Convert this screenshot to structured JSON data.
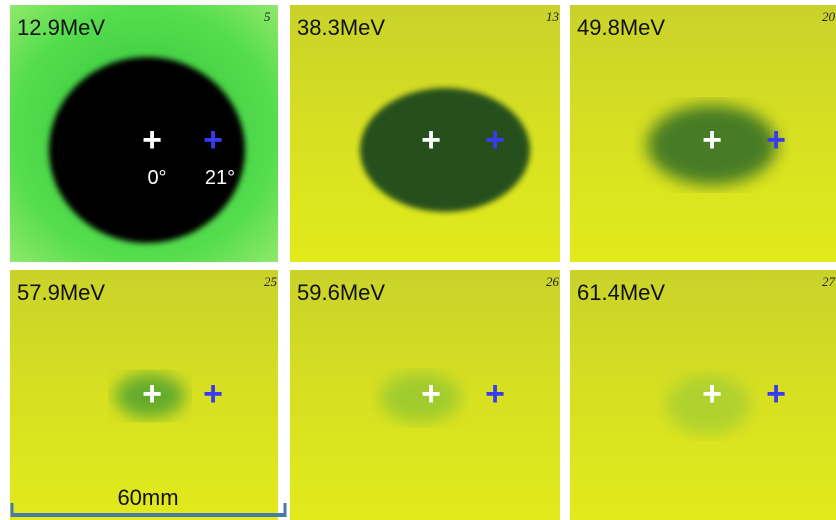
{
  "panels": [
    {
      "label": "12.9MeV",
      "note": "5"
    },
    {
      "label": "38.3MeV",
      "note": "13"
    },
    {
      "label": "49.8MeV",
      "note": "20"
    },
    {
      "label": "57.9MeV",
      "note": "25"
    },
    {
      "label": "59.6MeV",
      "note": "26"
    },
    {
      "label": "61.4MeV",
      "note": "27"
    }
  ],
  "markers": {
    "center": "+",
    "offset": "+"
  },
  "angles": [
    "0°",
    "21°"
  ],
  "scale_bar": "60mm"
}
